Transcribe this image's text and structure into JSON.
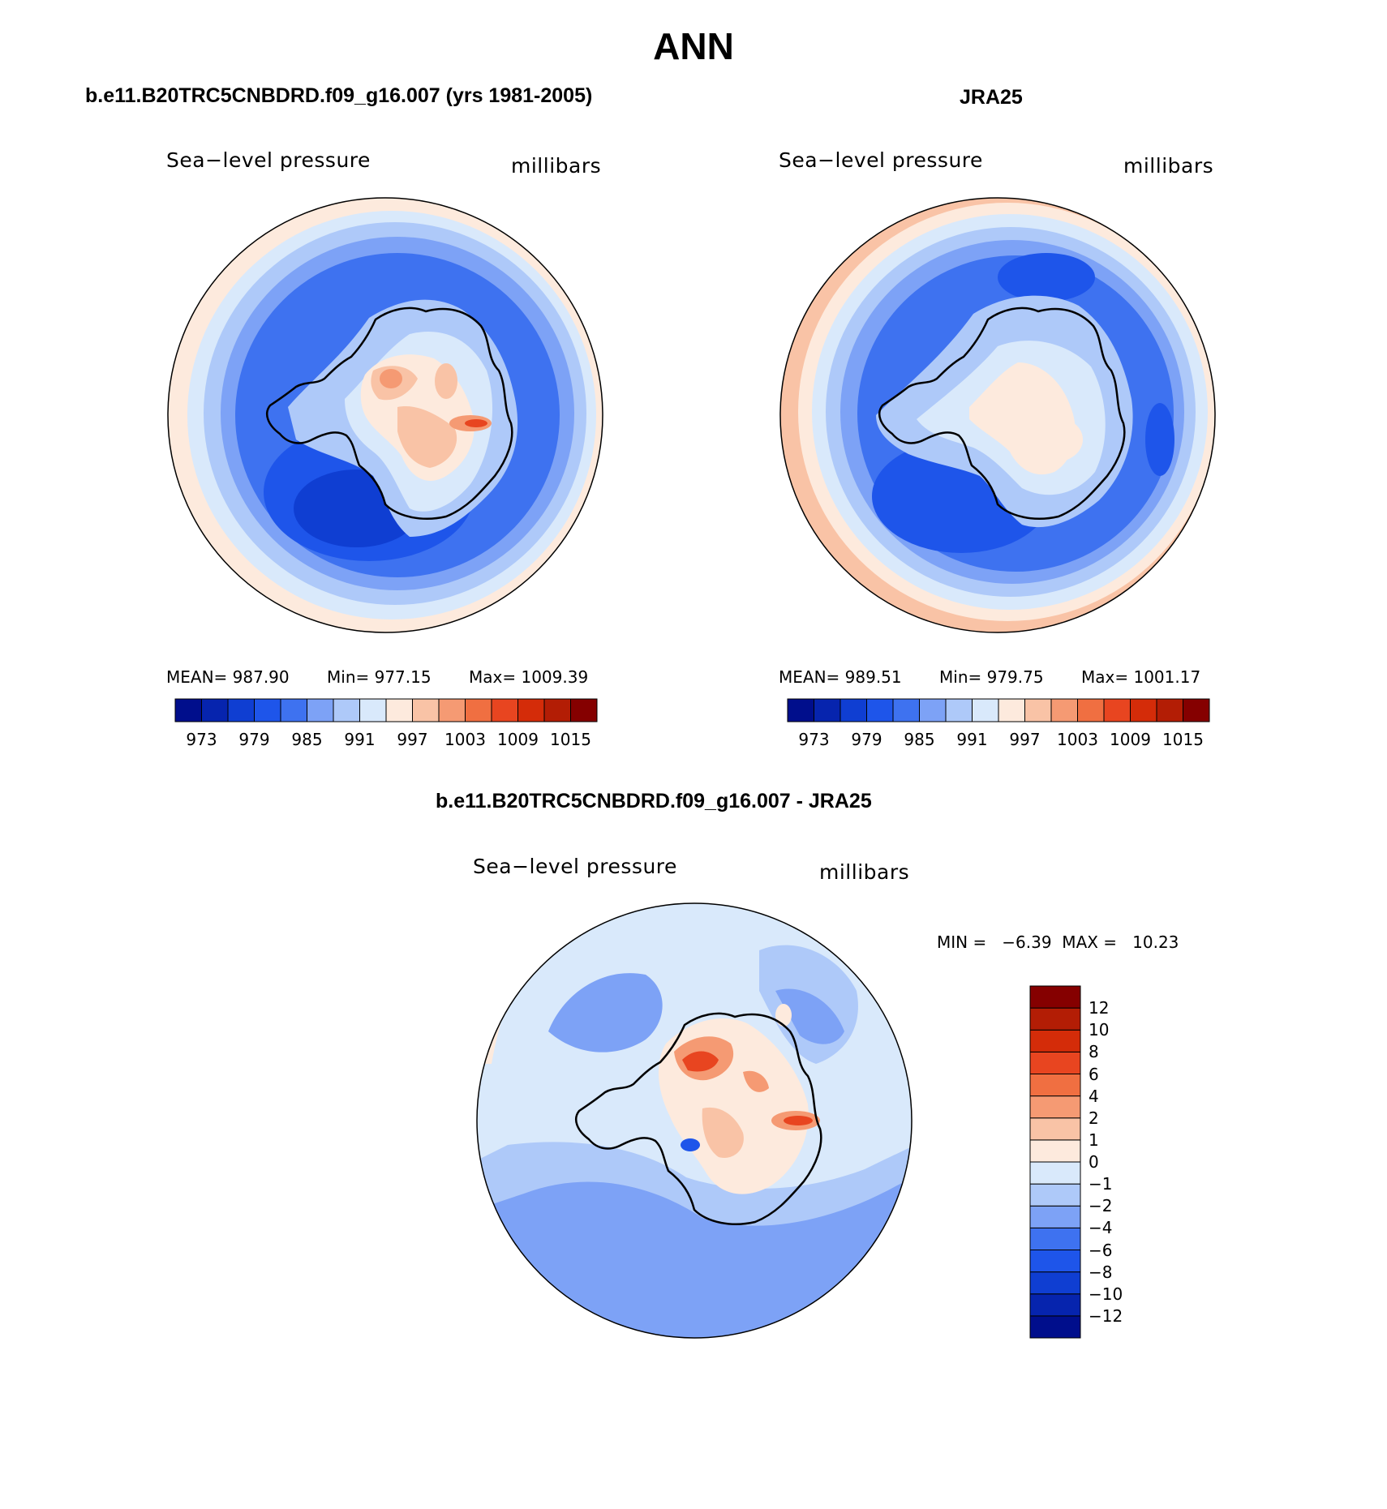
{
  "title": "ANN",
  "chart_data": [
    {
      "type": "heatmap",
      "panel": "model",
      "title": "b.e11.B20TRC5CNBDRD.f09_g16.007 (yrs 1981-2005)",
      "left_label": "Sea−level pressure",
      "right_label": "millibars",
      "stats": {
        "mean": "MEAN= 987.90",
        "min": "Min= 977.15",
        "max": "Max= 1009.39"
      },
      "colorbar": {
        "levels": [
          973,
          979,
          985,
          991,
          997,
          1003,
          1009,
          1015
        ],
        "tick_labels": [
          "973",
          "979",
          "985",
          "991",
          "997",
          "1003",
          "1009",
          "1015"
        ],
        "colors": [
          "#000e8c",
          "#0624ae",
          "#0f3ed2",
          "#1e55ea",
          "#3e72f0",
          "#7da2f6",
          "#aec9f9",
          "#d9e9fb",
          "#fdeadd",
          "#f9c3a6",
          "#f59a73",
          "#f06f41",
          "#e84520",
          "#d42c09",
          "#b31d05",
          "#850000"
        ]
      }
    },
    {
      "type": "heatmap",
      "panel": "observations",
      "title": "JRA25",
      "left_label": "Sea−level pressure",
      "right_label": "millibars",
      "stats": {
        "mean": "MEAN= 989.51",
        "min": "Min= 979.75",
        "max": "Max= 1001.17"
      },
      "colorbar": {
        "levels": [
          973,
          979,
          985,
          991,
          997,
          1003,
          1009,
          1015
        ],
        "tick_labels": [
          "973",
          "979",
          "985",
          "991",
          "997",
          "1003",
          "1009",
          "1015"
        ],
        "colors": [
          "#000e8c",
          "#0624ae",
          "#0f3ed2",
          "#1e55ea",
          "#3e72f0",
          "#7da2f6",
          "#aec9f9",
          "#d9e9fb",
          "#fdeadd",
          "#f9c3a6",
          "#f59a73",
          "#f06f41",
          "#e84520",
          "#d42c09",
          "#b31d05",
          "#850000"
        ]
      }
    },
    {
      "type": "heatmap",
      "panel": "difference",
      "title": "b.e11.B20TRC5CNBDRD.f09_g16.007 - JRA25",
      "left_label": "Sea−level pressure",
      "right_label": "millibars",
      "minmax": "MIN =   −6.39  MAX =   10.23",
      "colorbar": {
        "levels": [
          -12,
          -10,
          -8,
          -6,
          -4,
          -2,
          -1,
          0,
          1,
          2,
          4,
          6,
          8,
          10,
          12
        ],
        "tick_labels": [
          "−12",
          "−10",
          "−8",
          "−6",
          "−4",
          "−2",
          "−1",
          "0",
          "1",
          "2",
          "4",
          "6",
          "8",
          "10",
          "12"
        ],
        "colors": [
          "#000e8c",
          "#0624ae",
          "#0f3ed2",
          "#1e55ea",
          "#3e72f0",
          "#7da2f6",
          "#aec9f9",
          "#d9e9fb",
          "#fdeadd",
          "#f9c3a6",
          "#f59a73",
          "#f06f41",
          "#e84520",
          "#d42c09",
          "#b31d05",
          "#850000"
        ]
      }
    }
  ]
}
